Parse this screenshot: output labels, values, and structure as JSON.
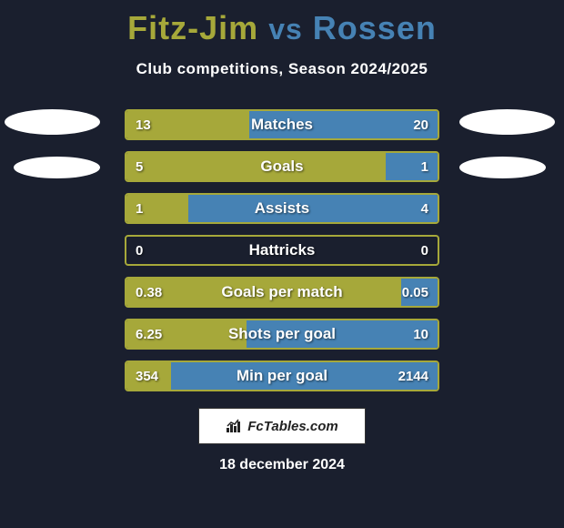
{
  "title": {
    "left": "Fitz-Jim",
    "vs": "vs",
    "right": "Rossen"
  },
  "subtitle": "Club competitions, Season 2024/2025",
  "colors": {
    "left": "#a6a83a",
    "right": "#4682b4",
    "background": "#1a1f2e",
    "text": "#ffffff"
  },
  "bars": [
    {
      "label": "Matches",
      "left_val": "13",
      "right_val": "20",
      "left_pct": 39.4,
      "right_pct": 60.6
    },
    {
      "label": "Goals",
      "left_val": "5",
      "right_val": "1",
      "left_pct": 83.3,
      "right_pct": 16.7
    },
    {
      "label": "Assists",
      "left_val": "1",
      "right_val": "4",
      "left_pct": 20.0,
      "right_pct": 80.0
    },
    {
      "label": "Hattricks",
      "left_val": "0",
      "right_val": "0",
      "left_pct": 0,
      "right_pct": 0
    },
    {
      "label": "Goals per match",
      "left_val": "0.38",
      "right_val": "0.05",
      "left_pct": 88.4,
      "right_pct": 11.6
    },
    {
      "label": "Shots per goal",
      "left_val": "6.25",
      "right_val": "10",
      "left_pct": 38.5,
      "right_pct": 61.5
    },
    {
      "label": "Min per goal",
      "left_val": "354",
      "right_val": "2144",
      "left_pct": 14.2,
      "right_pct": 85.8
    }
  ],
  "footer": {
    "brand": "FcTables.com",
    "date": "18 december 2024"
  }
}
